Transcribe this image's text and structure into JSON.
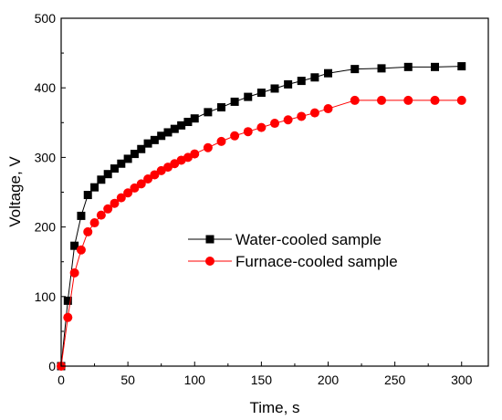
{
  "chart_data": {
    "type": "line",
    "title": "",
    "xlabel": "Time, s",
    "ylabel": "Voltage, V",
    "xlim": [
      0,
      320
    ],
    "ylim": [
      0,
      500
    ],
    "xticks": [
      0,
      50,
      100,
      150,
      200,
      250,
      300
    ],
    "yticks": [
      0,
      100,
      200,
      300,
      400,
      500
    ],
    "grid": false,
    "legend_position": "center-right",
    "series": [
      {
        "name": "Water-cooled sample",
        "marker": "square",
        "color": "#000000",
        "x": [
          0,
          5,
          10,
          15,
          20,
          25,
          30,
          35,
          40,
          45,
          50,
          55,
          60,
          65,
          70,
          75,
          80,
          85,
          90,
          95,
          100,
          110,
          120,
          130,
          140,
          150,
          160,
          170,
          180,
          190,
          200,
          220,
          240,
          260,
          280,
          300
        ],
        "y": [
          0,
          94,
          173,
          216,
          246,
          257,
          268,
          276,
          284,
          291,
          298,
          305,
          312,
          320,
          325,
          331,
          336,
          341,
          346,
          351,
          356,
          365,
          372,
          380,
          387,
          393,
          399,
          405,
          410,
          415,
          421,
          427,
          428,
          430,
          430,
          431
        ]
      },
      {
        "name": "Furnace-cooled sample",
        "marker": "circle",
        "color": "#ff0000",
        "x": [
          0,
          5,
          10,
          15,
          20,
          25,
          30,
          35,
          40,
          45,
          50,
          55,
          60,
          65,
          70,
          75,
          80,
          85,
          90,
          95,
          100,
          110,
          120,
          130,
          140,
          150,
          160,
          170,
          180,
          190,
          200,
          220,
          240,
          260,
          280,
          300
        ],
        "y": [
          0,
          70,
          134,
          167,
          193,
          206,
          217,
          226,
          234,
          242,
          249,
          256,
          262,
          269,
          275,
          281,
          286,
          291,
          296,
          300,
          305,
          314,
          323,
          331,
          337,
          343,
          349,
          354,
          359,
          364,
          370,
          382,
          382,
          382,
          382,
          382
        ]
      }
    ]
  }
}
